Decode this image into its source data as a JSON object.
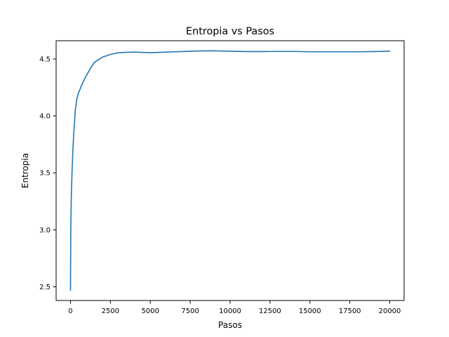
{
  "chart_data": {
    "type": "line",
    "title": "Entropia vs Pasos",
    "xlabel": "Pasos",
    "ylabel": "Entropia",
    "xlim": [
      -900,
      20900
    ],
    "ylim": [
      2.38,
      4.66
    ],
    "xticks": [
      0,
      2500,
      5000,
      7500,
      10000,
      12500,
      15000,
      17500,
      20000
    ],
    "xtick_labels": [
      "0",
      "2500",
      "5000",
      "7500",
      "10000",
      "12500",
      "15000",
      "17500",
      "20000"
    ],
    "yticks": [
      2.5,
      3.0,
      3.5,
      4.0,
      4.5
    ],
    "ytick_labels": [
      "2.5",
      "3.0",
      "3.5",
      "4.0",
      "4.5"
    ],
    "grid": false,
    "legend": "none",
    "series": [
      {
        "name": "",
        "color": "#1f77b4",
        "x": [
          0,
          20,
          50,
          100,
          150,
          200,
          250,
          300,
          400,
          500,
          700,
          900,
          1100,
          1300,
          1500,
          1700,
          2000,
          2500,
          3000,
          3500,
          4000,
          5000,
          6000,
          7000,
          8000,
          8800,
          10000,
          11000,
          12000,
          13000,
          14000,
          15000,
          16000,
          17000,
          18000,
          19000,
          20000
        ],
        "y": [
          2.47,
          3.05,
          3.28,
          3.52,
          3.7,
          3.84,
          3.94,
          4.05,
          4.15,
          4.2,
          4.27,
          4.33,
          4.38,
          4.43,
          4.47,
          4.49,
          4.515,
          4.54,
          4.555,
          4.558,
          4.56,
          4.555,
          4.56,
          4.565,
          4.57,
          4.572,
          4.568,
          4.565,
          4.565,
          4.566,
          4.566,
          4.563,
          4.563,
          4.563,
          4.563,
          4.565,
          4.568
        ]
      }
    ]
  }
}
